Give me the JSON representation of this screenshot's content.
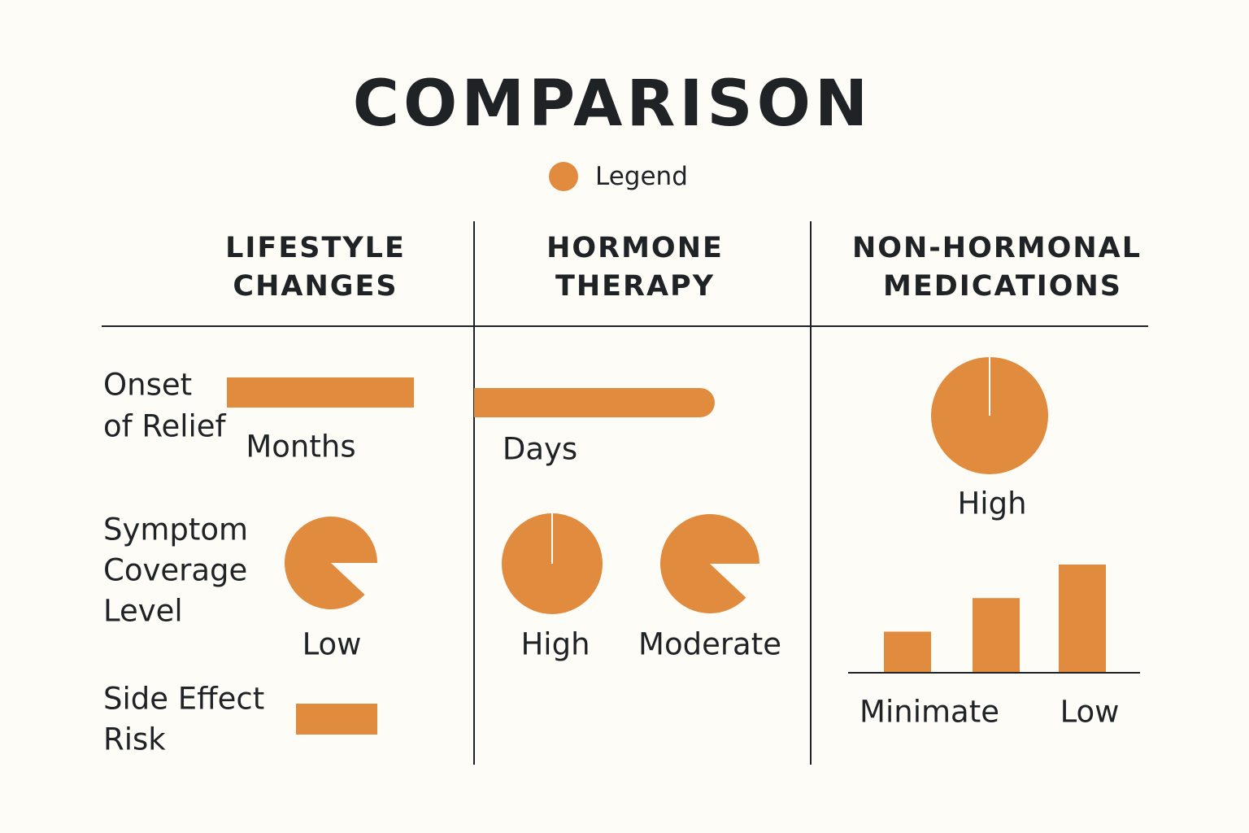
{
  "title": "COMPARISON",
  "legend": {
    "label": "Legend",
    "color": "#E08B3E"
  },
  "columns": [
    {
      "line1": "LIFESTYLE",
      "line2": "CHANGES"
    },
    {
      "line1": "HORMONE",
      "line2": "THERAPY"
    },
    {
      "line1": "NON-HORMONAL",
      "line2": "MEDICATIONS"
    }
  ],
  "rows": {
    "onset": {
      "line1": "Onset",
      "line2": "of Relief"
    },
    "coverage": {
      "line1": "Symptom",
      "line2": "Coverage",
      "line3": "Level"
    },
    "side_effect": {
      "line1": "Side Effect",
      "line2": "Risk"
    }
  },
  "cells": {
    "lifestyle_onset": "Months",
    "hormone_onset": "Days",
    "lifestyle_coverage": "Low",
    "hormone_coverage_1": "High",
    "hormone_coverage_2": "Moderate",
    "nonhormonal_coverage": "High",
    "nonhormonal_side_1": "Minimate",
    "nonhormonal_side_2": "Low"
  },
  "chart_data": {
    "type": "bar",
    "pie_fractions": {
      "lifestyle_coverage": 0.88,
      "hormone_high": 1.0,
      "hormone_moderate": 0.88,
      "nonhormonal_high": 1.0
    },
    "nonhormonal_side_effect_bars": [
      0.38,
      0.69,
      1.0
    ]
  }
}
